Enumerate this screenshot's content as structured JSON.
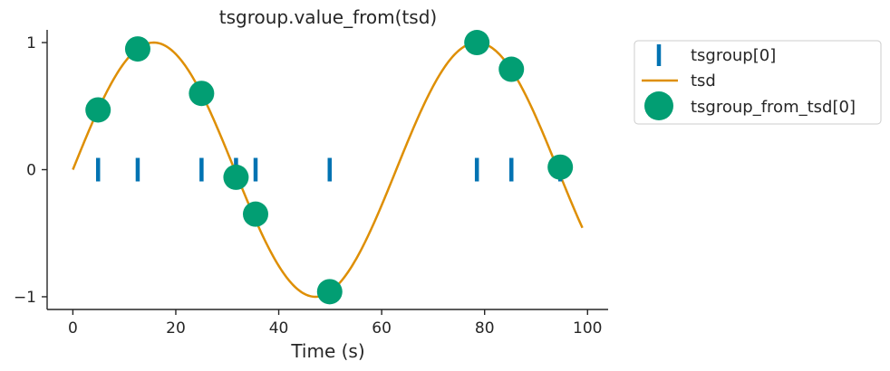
{
  "chart_data": {
    "type": "scatter",
    "title": "tsgroup.value_from(tsd)",
    "xlabel": "Time (s)",
    "ylabel": "",
    "xlim": [
      -5,
      104
    ],
    "ylim": [
      -1.1,
      1.1
    ],
    "xticks": [
      0,
      20,
      40,
      60,
      80,
      100
    ],
    "xtick_labels": [
      "0",
      "20",
      "40",
      "60",
      "80",
      "100"
    ],
    "yticks": [
      -1,
      0,
      1
    ],
    "ytick_labels": [
      "−1",
      "0",
      "1"
    ],
    "grid": false,
    "legend_position": "outside-upper-right",
    "tsd_curve": {
      "function": "sin",
      "frequency_rad_per_s": 0.1,
      "x_start": 0,
      "x_end": 99
    },
    "series": [
      {
        "name": "tsgroup[0]",
        "kind": "event-ticks",
        "color": "#0173b2",
        "x": [
          4.9,
          12.6,
          25.0,
          31.7,
          35.5,
          49.9,
          78.5,
          85.2,
          94.7
        ],
        "y": [
          0,
          0,
          0,
          0,
          0,
          0,
          0,
          0,
          0
        ]
      },
      {
        "name": "tsd",
        "kind": "line",
        "color": "#de8f05"
      },
      {
        "name": "tsgroup_from_tsd[0]",
        "kind": "markers",
        "color": "#029e73",
        "x": [
          4.9,
          12.6,
          25.0,
          31.7,
          35.5,
          49.9,
          78.5,
          85.2,
          94.7
        ],
        "y": [
          0.47,
          0.95,
          0.6,
          -0.06,
          -0.35,
          -0.96,
          1.0,
          0.79,
          0.02
        ]
      }
    ]
  }
}
